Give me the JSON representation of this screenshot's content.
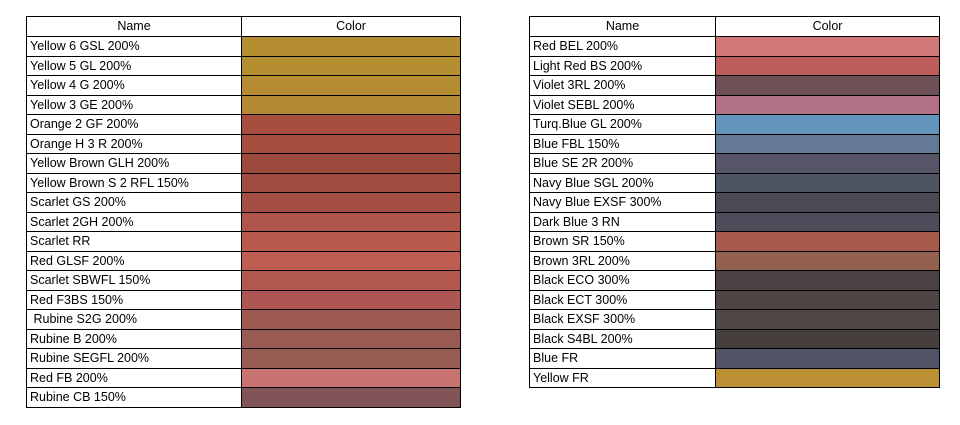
{
  "left_table": {
    "header_name": "Name",
    "header_color": "Color",
    "rows": [
      {
        "name": "Yellow 6 GSL 200%",
        "color": "#B68E32"
      },
      {
        "name": "Yellow 5 GL 200%",
        "color": "#B48E30"
      },
      {
        "name": "Yellow 4 G 200%",
        "color": "#B58C31"
      },
      {
        "name": "Yellow 3 GE 200%",
        "color": "#B48A34"
      },
      {
        "name": "Orange 2 GF 200%",
        "color": "#A84E3E"
      },
      {
        "name": "Orange H 3 R 200%",
        "color": "#A74E3E"
      },
      {
        "name": "Yellow Brown GLH 200%",
        "color": "#9C4A3B"
      },
      {
        "name": "Yellow Brown S 2 RFL 150%",
        "color": "#A04C3E"
      },
      {
        "name": "Scarlet GS 200%",
        "color": "#A54F42"
      },
      {
        "name": "Scarlet 2GH 200%",
        "color": "#AD5649"
      },
      {
        "name": "Scarlet RR",
        "color": "#B85A4D"
      },
      {
        "name": "Red GLSF 200%",
        "color": "#BD5E50"
      },
      {
        "name": "Scarlet SBWFL 150%",
        "color": "#B2574B"
      },
      {
        "name": "Red F3BS 150%",
        "color": "#AD5654"
      },
      {
        "name": " Rubine S2G 200%",
        "color": "#9E5A51"
      },
      {
        "name": "Rubine B 200%",
        "color": "#9A5A54"
      },
      {
        "name": "Rubine SEGFL 200%",
        "color": "#985C55"
      },
      {
        "name": "Red FB 200%",
        "color": "#C97272"
      },
      {
        "name": "Rubine CB 150%",
        "color": "#815558"
      }
    ]
  },
  "right_table": {
    "header_name": "Name",
    "header_color": "Color",
    "rows": [
      {
        "name": "Red BEL 200%",
        "color": "#D17778"
      },
      {
        "name": "Light Red BS 200%",
        "color": "#BD5D5C"
      },
      {
        "name": "Violet 3RL 200%",
        "color": "#6E5156"
      },
      {
        "name": "Violet SEBL 200%",
        "color": "#B27085"
      },
      {
        "name": "Turq.Blue GL 200%",
        "color": "#6394BB"
      },
      {
        "name": "Blue FBL 150%",
        "color": "#647995"
      },
      {
        "name": "Blue SE 2R 200%",
        "color": "#565567"
      },
      {
        "name": "Navy Blue SGL 200%",
        "color": "#4C5561"
      },
      {
        "name": "Navy Blue EXSF 300%",
        "color": "#4A4A55"
      },
      {
        "name": "Dark Blue 3 RN",
        "color": "#4C4C5A"
      },
      {
        "name": "Brown SR 150%",
        "color": "#A55A4C"
      },
      {
        "name": "Brown 3RL 200%",
        "color": "#94604F"
      },
      {
        "name": "Black ECO 300%",
        "color": "#4B4142"
      },
      {
        "name": "Black ECT 300%",
        "color": "#4D4443"
      },
      {
        "name": "Black EXSF 300%",
        "color": "#4E4745"
      },
      {
        "name": "Black S4BL 200%",
        "color": "#463F3D"
      },
      {
        "name": "Blue FR",
        "color": "#505465"
      },
      {
        "name": "Yellow FR",
        "color": "#BC9136"
      }
    ]
  }
}
